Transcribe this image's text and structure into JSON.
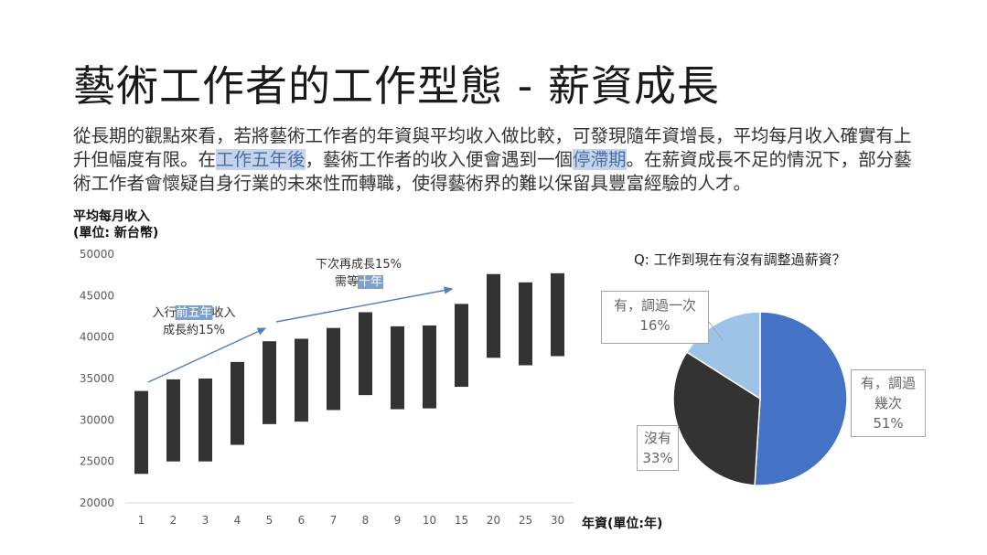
{
  "slide": {
    "title": "藝術工作者的工作型態 - 薪資成長",
    "paragraph": [
      {
        "t": "從長期的觀點來看，若將藝術工作者的年資與平均收入做比較，可發現隨年資增長，平均每月收入確實有上升但幅度有限。在",
        "hl": false
      },
      {
        "t": "工作五年後",
        "hl": true
      },
      {
        "t": "，藝術工作者的收入便會遇到一個",
        "hl": false
      },
      {
        "t": "停滯期",
        "hl": true
      },
      {
        "t": "。在薪資成長不足的情況下，部分藝術工作者會懷疑自身行業的未來性而轉職，使得藝術界的難以保留具豐富經驗的人才。",
        "hl": false
      }
    ]
  },
  "chart_data": [
    {
      "type": "bar",
      "subtype": "floating-range",
      "ylabel_lines": [
        "平均每月收入",
        "(單位: 新台幣)"
      ],
      "xlabel": "年資(單位:年)",
      "categories": [
        "1",
        "2",
        "3",
        "4",
        "5",
        "6",
        "7",
        "8",
        "9",
        "10",
        "15",
        "20",
        "25",
        "30"
      ],
      "low": [
        23500,
        25000,
        25000,
        27000,
        29500,
        29800,
        31200,
        33000,
        31300,
        31400,
        34000,
        37500,
        36600,
        37700
      ],
      "high": [
        33500,
        34900,
        35000,
        37000,
        39500,
        39800,
        41100,
        43000,
        41300,
        41400,
        44000,
        47600,
        46600,
        47700
      ],
      "ylim": [
        20000,
        50000
      ],
      "yticks": [
        20000,
        25000,
        30000,
        35000,
        40000,
        45000,
        50000
      ],
      "bar_color": "#333333",
      "arrow_color": "#4f7fbf",
      "annotations": [
        {
          "parts": [
            {
              "t": "入行",
              "hl": false
            },
            {
              "t": "前五年",
              "hl": true
            },
            {
              "t": "收入",
              "hl": false
            }
          ],
          "line2": "成長約15%"
        },
        {
          "line1": "下次再成長15%",
          "parts": [
            {
              "t": "需等",
              "hl": false
            },
            {
              "t": "十年",
              "hl": true
            }
          ]
        }
      ]
    },
    {
      "type": "pie",
      "title": "Q: 工作到現在有沒有調整過薪資？",
      "slices": [
        {
          "label_lines": [
            "有，調過",
            "幾次"
          ],
          "pct": "51%",
          "value": 51,
          "color": "#4472c4"
        },
        {
          "label_lines": [
            "沒有"
          ],
          "pct": "33%",
          "value": 33,
          "color": "#333333"
        },
        {
          "label_lines": [
            "有，調過一次"
          ],
          "pct": "16%",
          "value": 16,
          "color": "#9dc3e6"
        }
      ]
    }
  ]
}
